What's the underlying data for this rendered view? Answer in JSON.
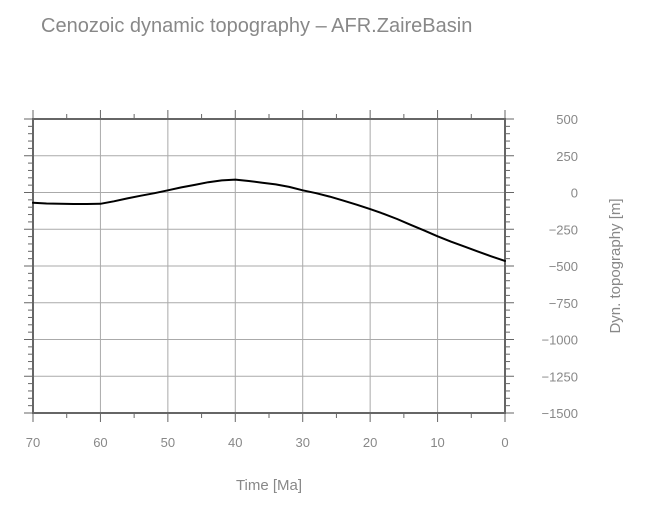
{
  "chart_data": {
    "type": "line",
    "title": "Cenozoic dynamic topography – AFR.ZaireBasin",
    "xlabel": "Time [Ma]",
    "ylabel": "Dyn. topography [m]",
    "xlim": [
      70,
      0
    ],
    "ylim": [
      -1500,
      500
    ],
    "x_ticks": [
      70,
      60,
      50,
      40,
      30,
      20,
      10,
      0
    ],
    "x_tick_labels": [
      "70",
      "60",
      "50",
      "40",
      "30",
      "20",
      "10",
      "0"
    ],
    "y_ticks": [
      500,
      250,
      0,
      -250,
      -500,
      -750,
      -1000,
      -1250,
      -1500
    ],
    "y_tick_labels": [
      "500",
      "250",
      "0",
      "−250",
      "−500",
      "−750",
      "−1000",
      "−1250",
      "−1500"
    ],
    "y_axis_side": "right",
    "grid": true,
    "series": [
      {
        "color": "#000000",
        "x": [
          70,
          68,
          66,
          64,
          62,
          60,
          58,
          56,
          54,
          52,
          50,
          48,
          46,
          44,
          42,
          40,
          38,
          36,
          34,
          32,
          30,
          28,
          26,
          24,
          22,
          20,
          18,
          16,
          14,
          12,
          10,
          8,
          6,
          4,
          2,
          0
        ],
        "y": [
          -70,
          -75,
          -76,
          -78,
          -78,
          -77,
          -60,
          -40,
          -22,
          -5,
          15,
          35,
          52,
          70,
          82,
          88,
          78,
          67,
          55,
          38,
          15,
          -5,
          -28,
          -55,
          -83,
          -113,
          -145,
          -180,
          -220,
          -258,
          -298,
          -335,
          -368,
          -402,
          -435,
          -465
        ]
      }
    ]
  },
  "colors": {
    "frame": "#666666",
    "grid": "#aaaaaa",
    "text": "#888888",
    "line": "#000000"
  }
}
